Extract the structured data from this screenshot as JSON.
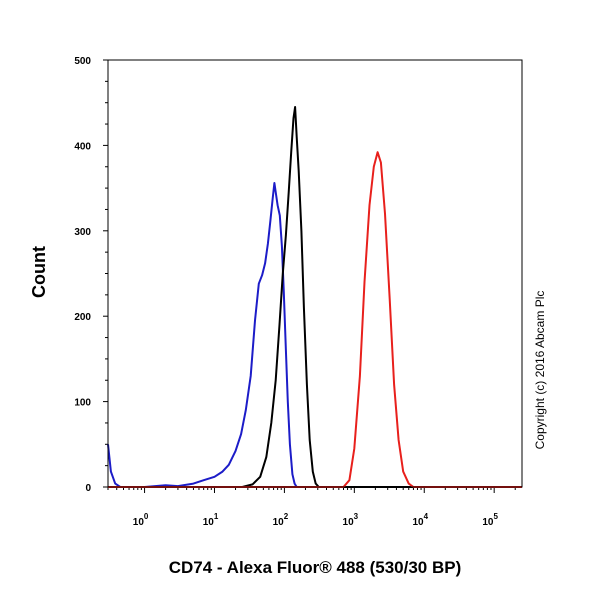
{
  "chart_data": {
    "type": "line",
    "xlabel": "CD74 - Alexa Fluor® 488 (530/30 BP)",
    "ylabel": "Count",
    "x_scale": "log",
    "xlim": [
      0.3,
      250000
    ],
    "ylim": [
      0,
      500
    ],
    "yticks": [
      0,
      100,
      200,
      300,
      400,
      500
    ],
    "xticks": [
      {
        "base": "10",
        "exp": "0",
        "value": 1
      },
      {
        "base": "10",
        "exp": "1",
        "value": 10
      },
      {
        "base": "10",
        "exp": "2",
        "value": 100
      },
      {
        "base": "10",
        "exp": "3",
        "value": 1000
      },
      {
        "base": "10",
        "exp": "4",
        "value": 10000
      },
      {
        "base": "10",
        "exp": "5",
        "value": 100000
      }
    ],
    "series": [
      {
        "color": "#1c1cc8",
        "points": [
          [
            0.3,
            50
          ],
          [
            0.33,
            18
          ],
          [
            0.38,
            4
          ],
          [
            0.45,
            0
          ],
          [
            1,
            0
          ],
          [
            2,
            2
          ],
          [
            3,
            1
          ],
          [
            5,
            4
          ],
          [
            7,
            8
          ],
          [
            10,
            12
          ],
          [
            13,
            18
          ],
          [
            16,
            26
          ],
          [
            20,
            42
          ],
          [
            24,
            62
          ],
          [
            28,
            90
          ],
          [
            33,
            130
          ],
          [
            38,
            195
          ],
          [
            43,
            238
          ],
          [
            48,
            248
          ],
          [
            53,
            262
          ],
          [
            58,
            285
          ],
          [
            63,
            312
          ],
          [
            68,
            338
          ],
          [
            72,
            356
          ],
          [
            76,
            342
          ],
          [
            80,
            330
          ],
          [
            86,
            318
          ],
          [
            92,
            282
          ],
          [
            98,
            228
          ],
          [
            105,
            160
          ],
          [
            112,
            100
          ],
          [
            120,
            50
          ],
          [
            130,
            15
          ],
          [
            140,
            4
          ],
          [
            150,
            0
          ],
          [
            250000,
            0
          ]
        ]
      },
      {
        "color": "#000000",
        "points": [
          [
            0.3,
            0
          ],
          [
            25,
            0
          ],
          [
            35,
            3
          ],
          [
            45,
            12
          ],
          [
            55,
            35
          ],
          [
            65,
            75
          ],
          [
            75,
            125
          ],
          [
            85,
            190
          ],
          [
            95,
            250
          ],
          [
            105,
            295
          ],
          [
            115,
            345
          ],
          [
            125,
            392
          ],
          [
            135,
            432
          ],
          [
            142,
            445
          ],
          [
            150,
            410
          ],
          [
            160,
            370
          ],
          [
            175,
            300
          ],
          [
            190,
            210
          ],
          [
            210,
            120
          ],
          [
            230,
            55
          ],
          [
            255,
            18
          ],
          [
            280,
            4
          ],
          [
            310,
            0
          ],
          [
            250000,
            0
          ]
        ]
      },
      {
        "color": "#e8201c",
        "points": [
          [
            0.3,
            0
          ],
          [
            700,
            0
          ],
          [
            850,
            8
          ],
          [
            1000,
            45
          ],
          [
            1200,
            130
          ],
          [
            1400,
            240
          ],
          [
            1650,
            330
          ],
          [
            1900,
            375
          ],
          [
            2150,
            392
          ],
          [
            2400,
            380
          ],
          [
            2750,
            320
          ],
          [
            3200,
            220
          ],
          [
            3700,
            120
          ],
          [
            4300,
            55
          ],
          [
            5000,
            18
          ],
          [
            6000,
            4
          ],
          [
            7000,
            0
          ],
          [
            250000,
            0
          ]
        ]
      }
    ]
  },
  "copyright": "Copyright (c) 2016 Abcam Plc"
}
